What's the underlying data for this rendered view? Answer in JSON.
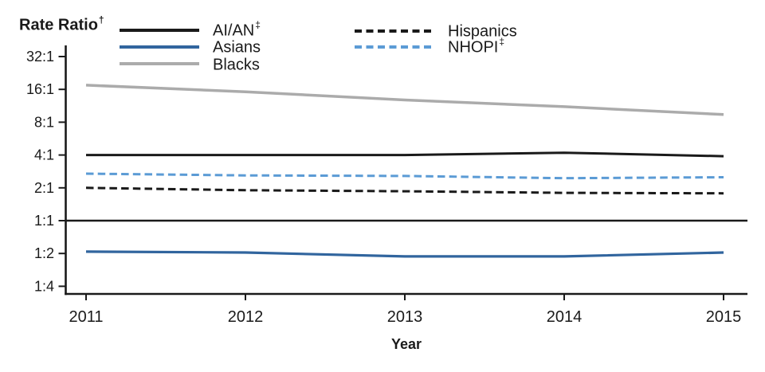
{
  "figure": {
    "title": {
      "text": "Rate Ratio",
      "superscript": "†"
    }
  },
  "legend": {
    "items": [
      {
        "id": "aian",
        "label": "AI/AN",
        "superscript": "‡",
        "color": "#1a1a1a",
        "line_style": "solid"
      },
      {
        "id": "asians",
        "label": "Asians",
        "superscript": "",
        "color": "#31659e",
        "line_style": "solid"
      },
      {
        "id": "blacks",
        "label": "Blacks",
        "superscript": "",
        "color": "#ababab",
        "line_style": "solid"
      },
      {
        "id": "hispanics",
        "label": "Hispanics",
        "superscript": "",
        "color": "#1a1a1a",
        "line_style": "dashed"
      },
      {
        "id": "nhopi",
        "label": "NHOPI",
        "superscript": "‡",
        "color": "#5b9bd5",
        "line_style": "dashed"
      }
    ]
  },
  "chart_data": {
    "type": "line",
    "title": "Rate Ratio†",
    "xlabel": "Year",
    "ylabel": "Rate Ratio†",
    "x": [
      2011,
      2012,
      2013,
      2014,
      2015
    ],
    "y_scale": "log2",
    "y_ticks": [
      {
        "label": "32:1",
        "value": 32
      },
      {
        "label": "16:1",
        "value": 16
      },
      {
        "label": "8:1",
        "value": 8
      },
      {
        "label": "4:1",
        "value": 4
      },
      {
        "label": "2:1",
        "value": 2
      },
      {
        "label": "1:1",
        "value": 1
      },
      {
        "label": "1:2",
        "value": 0.5
      },
      {
        "label": "1:4",
        "value": 0.25
      }
    ],
    "ylim": [
      0.25,
      32
    ],
    "reference_line_value": 1,
    "grid": false,
    "legend_position": "top",
    "series": [
      {
        "name": "AI/AN‡",
        "color": "#1a1a1a",
        "line_style": "solid",
        "values": [
          4.0,
          4.0,
          4.0,
          4.2,
          3.9
        ]
      },
      {
        "name": "Asians",
        "color": "#31659e",
        "line_style": "solid",
        "values": [
          0.52,
          0.51,
          0.47,
          0.47,
          0.51
        ]
      },
      {
        "name": "Blacks",
        "color": "#ababab",
        "line_style": "solid",
        "values": [
          17.5,
          15.2,
          12.8,
          11.1,
          9.4
        ]
      },
      {
        "name": "Hispanics",
        "color": "#1a1a1a",
        "line_style": "dashed",
        "values": [
          2.0,
          1.9,
          1.86,
          1.8,
          1.78
        ]
      },
      {
        "name": "NHOPI‡",
        "color": "#5b9bd5",
        "line_style": "dashed",
        "values": [
          2.7,
          2.6,
          2.57,
          2.45,
          2.5
        ]
      }
    ]
  }
}
